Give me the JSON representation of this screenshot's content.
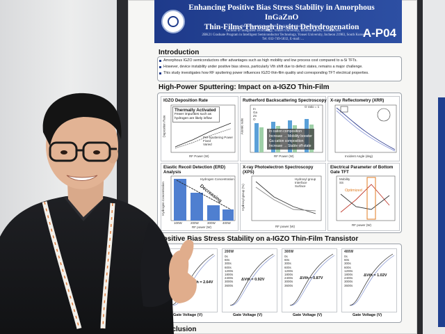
{
  "poster": {
    "title_line1": "Enhancing Positive Bias Stress Stability in Amorphous InGaZnO",
    "title_line2": "Thin-Films Through in-situ Dehydrogenation",
    "authors": "Junsoo Lee1,2, Jeong-Min Park1,2 and Jang-Yeon Kwon1,2",
    "affiliation1": "1School of Integrated Technology, Yonsei University, Incheon 21983, South Korea",
    "affiliation2": "2BK21 Graduate Program in Intelligent Semiconductor Technology, Yonsei University, Incheon 21983, South Korea",
    "contact": "Tel: 032-749-5832, E-mail: ...",
    "poster_id": "A-P04",
    "sections": {
      "intro": "Introduction",
      "hps": "High-Power Sputtering: Impact on a-IGZO Thin-Film",
      "pbs": "Positive Bias Stress Stability on a-IGZO Thin-Film Transistor",
      "conclusion": "Conclusion"
    },
    "intro_bullets": [
      "Amorphous IGZO semiconductors offer advantages such as high mobility and low process cost compared to a-Si TFTs.",
      "However, device instability under positive bias stress, particularly Vth shift due to defect states, remains a major challenge.",
      "This study investigates how RF sputtering power influences IGZO thin-film quality and corresponding TFT electrical properties."
    ],
    "panels": {
      "igzo": {
        "title": "IGZO Deposition Rate",
        "annotation_title": "Thermally Activated",
        "annotation_body": "Fewer impurities such as hydrogen are likely inflow",
        "legend": [
          "Pre-Sputtering Power",
          "Fixed",
          "Varied"
        ],
        "ylabel": "Deposition Rate",
        "xlabel": "RF Power (W)"
      },
      "rbs": {
        "title": "Rutherford Backscattering Spectroscopy (RBS)",
        "legend": [
          "In",
          "Ga",
          "Zn",
          "O"
        ],
        "ylabel": "Atomic ratio",
        "xlabel": "RF Power (W)",
        "box_lines": [
          "In cation composition",
          "Increase → Mobility booster",
          "Ga cation composition",
          "Increase → Stable off-state"
        ],
        "note": "O ratio = 1"
      },
      "xrr": {
        "title": "X-ray Reflectometry (XRR)",
        "xlabel": "Incident Angle (deg)",
        "ylabel": "Intensity"
      },
      "erd": {
        "title": "Elastic Recoil Detection (ERD) Analysis",
        "legend": "Hydrogen Concentration",
        "trend": "Decreasing",
        "ylabel": "Hydrogen Concentration",
        "xlabel": "RF power (W)",
        "x": [
          "100W",
          "200W",
          "300W",
          "400W"
        ]
      },
      "xps": {
        "title": "X-ray Photoelectron Spectroscopy (XPS)",
        "legend": [
          "Hydroxyl group",
          "Interface",
          "Surface"
        ],
        "ylabel": "Hydroxyl group (%)",
        "xlabel": "RF power (W)"
      },
      "elec": {
        "title": "Electrical Parameter of Bottom Gate",
        "subtitle": "TFT",
        "legend": [
          "Mobility",
          "SS"
        ],
        "note": "Optimized",
        "ylabel": "Mobility (cm²/Vs)",
        "xlabel": "RF power (W)"
      }
    },
    "pbs_panels": [
      {
        "label": "100W",
        "shift": "ΔVth = 2.64V"
      },
      {
        "label": "200W",
        "shift": "ΔVth = 0.92V"
      },
      {
        "label": "300W",
        "shift": "ΔVth = 0.87V"
      },
      {
        "label": "400W",
        "shift": "ΔVth = 1.02V"
      }
    ],
    "pbs_times": [
      "0s",
      "60s",
      "300s",
      "600s",
      "1200s",
      "1800s",
      "2400s",
      "3000s",
      "3600s"
    ],
    "pbs_xlabel": "Gate Voltage (V)",
    "pbs_ylabel": "(A)"
  }
}
